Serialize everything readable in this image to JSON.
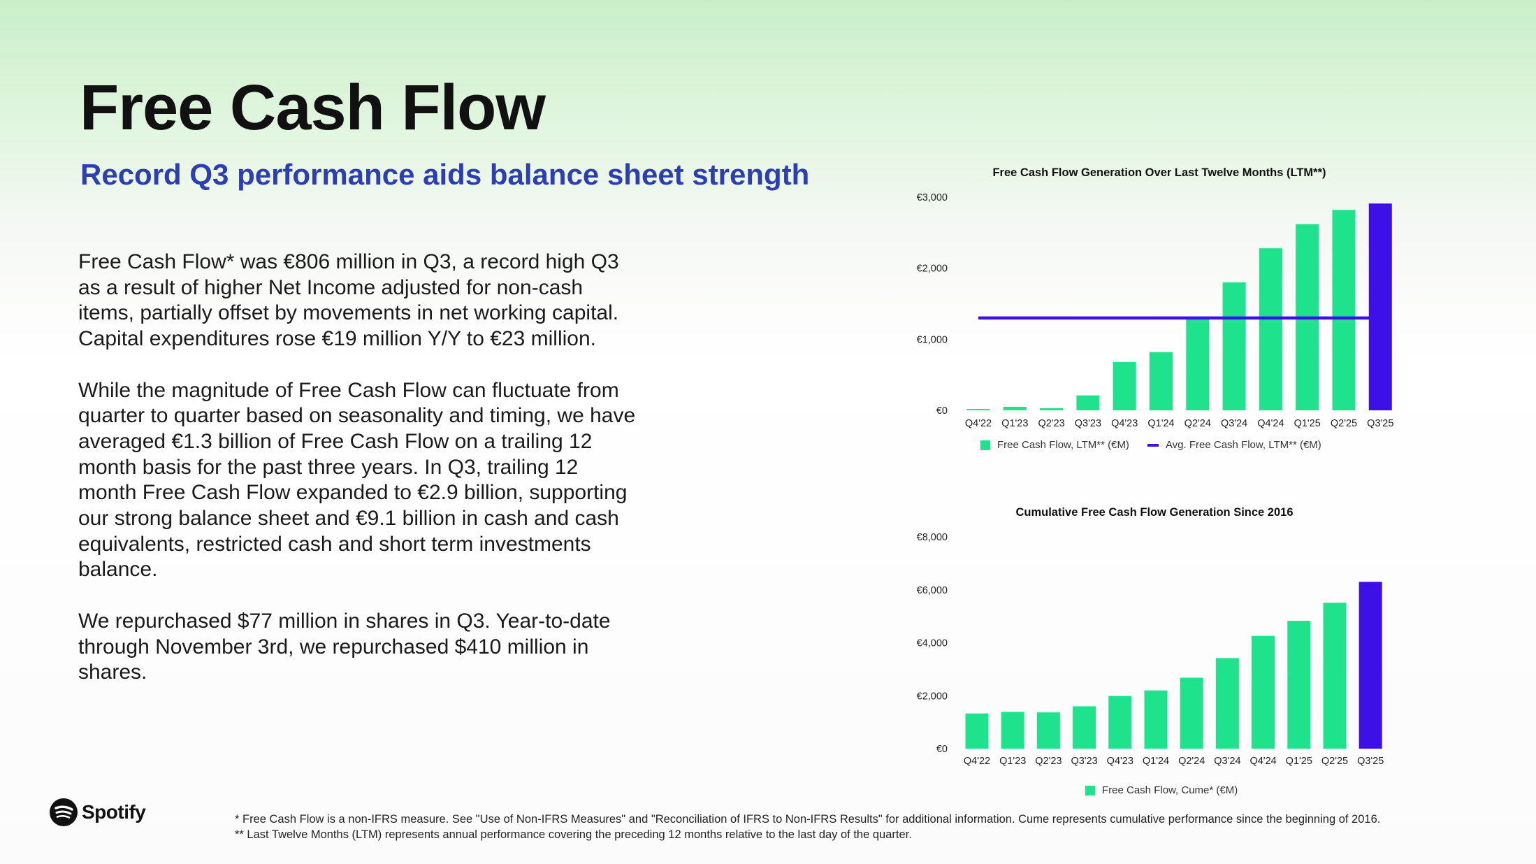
{
  "slide": {
    "title": "Free Cash Flow",
    "subtitle": "Record Q3 performance aids balance sheet strength",
    "paragraphs": [
      "Free Cash Flow* was €806 million in Q3, a record high Q3 as a result of higher Net Income adjusted for non-cash items, partially offset by movements in net working capital. Capital expenditures rose €19 million Y/Y to €23 million.",
      "While the magnitude of Free Cash Flow can fluctuate from quarter to quarter based on seasonality and timing, we have averaged €1.3 billion of Free Cash Flow on a trailing 12 month basis for the past three years. In Q3, trailing 12 month Free Cash Flow expanded to €2.9 billion, supporting our strong balance sheet and €9.1 billion in cash and cash equivalents, restricted cash and short term investments balance.",
      "We repurchased $77 million in shares in Q3. Year-to-date through November 3rd, we repurchased $410 million in shares."
    ],
    "logo_text": "Spotify",
    "footnotes": [
      "* Free Cash Flow is a non-IFRS measure. See \"Use of Non-IFRS Measures\" and \"Reconciliation of IFRS to Non-IFRS Results\" for additional information. Cume represents cumulative performance since the beginning of 2016.",
      "** Last Twelve Months (LTM) represents annual performance covering the preceding 12 months relative to the last day of the quarter."
    ]
  },
  "colors": {
    "green": "#1ee38c",
    "purple": "#3d10e8",
    "title": "#111111",
    "subtitle": "#2c3eb4"
  },
  "chart_data": [
    {
      "type": "bar",
      "title": "Free Cash Flow Generation Over Last Twelve Months (LTM**)",
      "categories": [
        "Q4'22",
        "Q1'23",
        "Q2'23",
        "Q3'23",
        "Q4'23",
        "Q1'24",
        "Q2'24",
        "Q3'24",
        "Q4'24",
        "Q1'25",
        "Q2'25",
        "Q3'25"
      ],
      "series": [
        {
          "name": "Free Cash Flow, LTM** (€M)",
          "type": "bar",
          "values": [
            20,
            50,
            30,
            210,
            680,
            820,
            1290,
            1800,
            2280,
            2620,
            2820,
            2910
          ],
          "highlight_last": true
        },
        {
          "name": "Avg. Free Cash Flow, LTM** (€M)",
          "type": "line",
          "values": [
            1300,
            1300,
            1300,
            1300,
            1300,
            1300,
            1300,
            1300,
            1300,
            1300,
            1300,
            1300
          ]
        }
      ],
      "yticks": [
        "€0",
        "€1,000",
        "€2,000",
        "€3,000"
      ],
      "ytick_values": [
        0,
        1000,
        2000,
        3000
      ],
      "ylim": [
        0,
        3000
      ],
      "legend_position": "bottom",
      "grid": false
    },
    {
      "type": "bar",
      "title": "Cumulative Free Cash Flow Generation Since 2016",
      "categories": [
        "Q4'22",
        "Q1'23",
        "Q2'23",
        "Q3'23",
        "Q4'23",
        "Q1'24",
        "Q2'24",
        "Q3'24",
        "Q4'24",
        "Q1'25",
        "Q2'25",
        "Q3'25"
      ],
      "series": [
        {
          "name": "Free Cash Flow, Cume* (€M)",
          "type": "bar",
          "values": [
            1330,
            1390,
            1370,
            1600,
            1990,
            2200,
            2680,
            3420,
            4260,
            4830,
            5510,
            6300
          ],
          "highlight_last": true
        }
      ],
      "yticks": [
        "€0",
        "€2,000",
        "€4,000",
        "€6,000",
        "€8,000"
      ],
      "ytick_values": [
        0,
        2000,
        4000,
        6000,
        8000
      ],
      "ylim": [
        0,
        8000
      ],
      "legend_position": "bottom",
      "grid": false
    }
  ]
}
